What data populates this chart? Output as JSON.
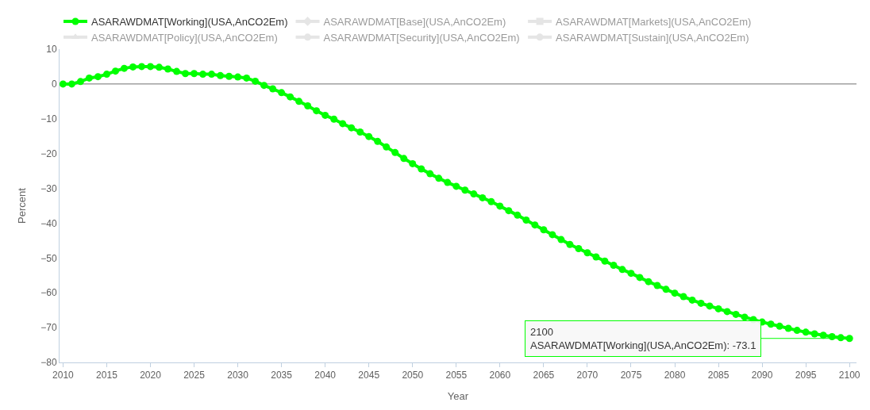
{
  "chart_data": {
    "type": "line",
    "xlabel": "Year",
    "ylabel": "Percent",
    "x": [
      2010,
      2011,
      2012,
      2013,
      2014,
      2015,
      2016,
      2017,
      2018,
      2019,
      2020,
      2021,
      2022,
      2023,
      2024,
      2025,
      2026,
      2027,
      2028,
      2029,
      2030,
      2031,
      2032,
      2033,
      2034,
      2035,
      2036,
      2037,
      2038,
      2039,
      2040,
      2041,
      2042,
      2043,
      2044,
      2045,
      2046,
      2047,
      2048,
      2049,
      2050,
      2051,
      2052,
      2053,
      2054,
      2055,
      2056,
      2057,
      2058,
      2059,
      2060,
      2061,
      2062,
      2063,
      2064,
      2065,
      2066,
      2067,
      2068,
      2069,
      2070,
      2071,
      2072,
      2073,
      2074,
      2075,
      2076,
      2077,
      2078,
      2079,
      2080,
      2081,
      2082,
      2083,
      2084,
      2085,
      2086,
      2087,
      2088,
      2089,
      2090,
      2091,
      2092,
      2093,
      2094,
      2095,
      2096,
      2097,
      2098,
      2099,
      2100
    ],
    "series": [
      {
        "name": "ASARAWDMAT[Working](USA,AnCO2Em)",
        "color": "#00ff00",
        "marker": "circle",
        "values": [
          0,
          0,
          0.7,
          1.7,
          2.1,
          2.8,
          3.7,
          4.5,
          4.9,
          5,
          5,
          4.8,
          4.3,
          3.6,
          3,
          3,
          2.8,
          2.8,
          2.4,
          2.2,
          2,
          1.7,
          0.8,
          -0.4,
          -1.4,
          -2.5,
          -3.7,
          -5,
          -6.3,
          -7.7,
          -9,
          -10.1,
          -11.4,
          -12.6,
          -13.8,
          -15.1,
          -16.5,
          -18.1,
          -19.7,
          -21.4,
          -22.9,
          -24.4,
          -25.8,
          -27.1,
          -28.3,
          -29.4,
          -30.5,
          -31.6,
          -32.7,
          -33.8,
          -35.1,
          -36.4,
          -37.7,
          -39.1,
          -40.5,
          -41.9,
          -43.3,
          -44.7,
          -46.1,
          -47.3,
          -48.5,
          -49.7,
          -50.9,
          -52.1,
          -53.3,
          -54.4,
          -55.6,
          -56.8,
          -57.9,
          -59,
          -60.1,
          -61.1,
          -62.1,
          -63,
          -63.8,
          -64.6,
          -65.4,
          -66.2,
          -67,
          -67.7,
          -68.4,
          -69,
          -69.6,
          -70.2,
          -70.8,
          -71.3,
          -71.8,
          -72.2,
          -72.6,
          -72.9,
          -73.1
        ]
      },
      {
        "name": "ASARAWDMAT[Base](USA,AnCO2Em)",
        "color": "#cccccc",
        "marker": "diamond",
        "values": [
          null,
          null,
          null,
          null,
          null,
          null,
          null,
          null,
          null,
          null,
          null,
          null,
          null,
          null,
          null,
          null,
          null,
          null,
          null,
          null,
          null,
          null,
          null,
          null,
          null,
          null,
          null,
          null,
          null,
          null,
          null,
          null,
          null,
          null,
          null,
          null,
          null,
          null,
          null,
          null,
          null,
          null,
          null,
          null,
          null,
          null,
          null,
          null,
          null,
          null,
          null,
          null,
          null,
          null,
          null,
          null,
          null,
          null,
          null,
          null,
          null,
          null,
          null,
          null,
          null,
          null,
          null,
          null,
          null,
          null,
          null,
          null,
          null,
          null,
          null,
          null,
          null,
          null,
          null,
          null,
          null,
          null,
          null,
          null,
          null,
          null,
          null,
          null,
          null,
          null,
          null
        ]
      },
      {
        "name": "ASARAWDMAT[Markets](USA,AnCO2Em)",
        "color": "#cccccc",
        "marker": "square",
        "values": [
          null,
          null,
          null,
          null,
          null,
          null,
          null,
          null,
          null,
          null,
          null,
          null,
          null,
          null,
          null,
          null,
          null,
          null,
          null,
          null,
          null,
          null,
          null,
          null,
          null,
          null,
          null,
          null,
          null,
          null,
          null,
          null,
          null,
          null,
          null,
          null,
          null,
          null,
          null,
          null,
          null,
          null,
          null,
          null,
          null,
          null,
          null,
          null,
          null,
          null,
          null,
          null,
          null,
          null,
          null,
          null,
          null,
          null,
          null,
          null,
          null,
          null,
          null,
          null,
          null,
          null,
          null,
          null,
          null,
          null,
          null,
          null,
          null,
          null,
          null,
          null,
          null,
          null,
          null,
          null,
          null,
          null,
          null,
          null,
          null,
          null,
          null,
          null,
          null,
          null,
          null
        ]
      },
      {
        "name": "ASARAWDMAT[Policy](USA,AnCO2Em)",
        "color": "#cccccc",
        "marker": "triangle",
        "values": [
          null,
          null,
          null,
          null,
          null,
          null,
          null,
          null,
          null,
          null,
          null,
          null,
          null,
          null,
          null,
          null,
          null,
          null,
          null,
          null,
          null,
          null,
          null,
          null,
          null,
          null,
          null,
          null,
          null,
          null,
          null,
          null,
          null,
          null,
          null,
          null,
          null,
          null,
          null,
          null,
          null,
          null,
          null,
          null,
          null,
          null,
          null,
          null,
          null,
          null,
          null,
          null,
          null,
          null,
          null,
          null,
          null,
          null,
          null,
          null,
          null,
          null,
          null,
          null,
          null,
          null,
          null,
          null,
          null,
          null,
          null,
          null,
          null,
          null,
          null,
          null,
          null,
          null,
          null,
          null,
          null,
          null,
          null,
          null,
          null,
          null,
          null,
          null,
          null,
          null,
          null
        ]
      },
      {
        "name": "ASARAWDMAT[Security](USA,AnCO2Em)",
        "color": "#cccccc",
        "marker": "circle",
        "values": [
          null,
          null,
          null,
          null,
          null,
          null,
          null,
          null,
          null,
          null,
          null,
          null,
          null,
          null,
          null,
          null,
          null,
          null,
          null,
          null,
          null,
          null,
          null,
          null,
          null,
          null,
          null,
          null,
          null,
          null,
          null,
          null,
          null,
          null,
          null,
          null,
          null,
          null,
          null,
          null,
          null,
          null,
          null,
          null,
          null,
          null,
          null,
          null,
          null,
          null,
          null,
          null,
          null,
          null,
          null,
          null,
          null,
          null,
          null,
          null,
          null,
          null,
          null,
          null,
          null,
          null,
          null,
          null,
          null,
          null,
          null,
          null,
          null,
          null,
          null,
          null,
          null,
          null,
          null,
          null,
          null,
          null,
          null,
          null,
          null,
          null,
          null,
          null,
          null,
          null,
          null
        ]
      },
      {
        "name": "ASARAWDMAT[Sustain](USA,AnCO2Em)",
        "color": "#cccccc",
        "marker": "circle",
        "values": [
          null,
          null,
          null,
          null,
          null,
          null,
          null,
          null,
          null,
          null,
          null,
          null,
          null,
          null,
          null,
          null,
          null,
          null,
          null,
          null,
          null,
          null,
          null,
          null,
          null,
          null,
          null,
          null,
          null,
          null,
          null,
          null,
          null,
          null,
          null,
          null,
          null,
          null,
          null,
          null,
          null,
          null,
          null,
          null,
          null,
          null,
          null,
          null,
          null,
          null,
          null,
          null,
          null,
          null,
          null,
          null,
          null,
          null,
          null,
          null,
          null,
          null,
          null,
          null,
          null,
          null,
          null,
          null,
          null,
          null,
          null,
          null,
          null,
          null,
          null,
          null,
          null,
          null,
          null,
          null,
          null,
          null,
          null,
          null,
          null,
          null,
          null,
          null,
          null,
          null,
          null
        ]
      }
    ],
    "xlim": [
      2009.6,
      2100.8
    ],
    "xticks": [
      2010,
      2015,
      2020,
      2025,
      2030,
      2035,
      2040,
      2045,
      2050,
      2055,
      2060,
      2065,
      2070,
      2075,
      2080,
      2085,
      2090,
      2095,
      2100
    ],
    "ylim": [
      -80,
      10
    ],
    "yticks": [
      -80,
      -70,
      -60,
      -50,
      -40,
      -30,
      -20,
      -10,
      0,
      10
    ],
    "ref_lines": [
      {
        "axis": "y",
        "value": 0,
        "color": "#707070"
      }
    ],
    "annotations": [
      {
        "text": "2100\nASARAWDMAT[Working](USA,AnCO2Em): -73.1",
        "x": 2100,
        "y": -73.1
      }
    ],
    "legend": "top",
    "grid": false
  }
}
